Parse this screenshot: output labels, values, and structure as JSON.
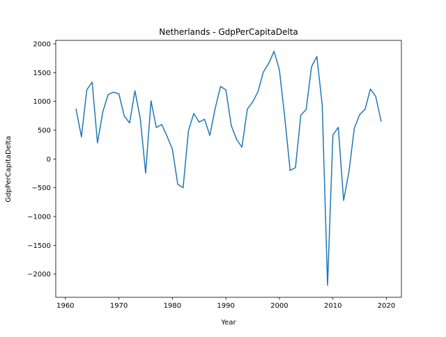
{
  "chart_data": {
    "type": "line",
    "title": "Netherlands - GdpPerCapitaDelta",
    "xlabel": "Year",
    "ylabel": "GdpPerCapitaDelta",
    "xlim": [
      1958.2,
      2022.8
    ],
    "ylim": [
      -2403,
      2060
    ],
    "xticks": [
      1960,
      1970,
      1980,
      1990,
      2000,
      2010,
      2020
    ],
    "yticks": [
      -2000,
      -1500,
      -1000,
      -500,
      0,
      500,
      1000,
      1500,
      2000
    ],
    "xtick_labels": [
      "1960",
      "1970",
      "1980",
      "1990",
      "2000",
      "2010",
      "2020"
    ],
    "ytick_labels": [
      "−2000",
      "−1500",
      "−1000",
      "−500",
      "0",
      "500",
      "1000",
      "1500",
      "2000"
    ],
    "grid": false,
    "legend": "none",
    "line_color": "#1f77b4",
    "series": [
      {
        "x": [
          1962,
          1963,
          1964,
          1965,
          1966,
          1967,
          1968,
          1969,
          1970,
          1971,
          1972,
          1973,
          1974,
          1975,
          1976,
          1977,
          1978,
          1979,
          1980,
          1981,
          1982,
          1983,
          1984,
          1985,
          1986,
          1987,
          1988,
          1989,
          1990,
          1991,
          1992,
          1993,
          1994,
          1995,
          1996,
          1997,
          1998,
          1999,
          2000,
          2001,
          2002,
          2003,
          2004,
          2005,
          2006,
          2007,
          2008,
          2009,
          2010,
          2011,
          2012,
          2013,
          2014,
          2015,
          2016,
          2017,
          2018,
          2019
        ],
        "values": [
          865,
          385,
          1200,
          1335,
          280,
          820,
          1120,
          1160,
          1130,
          750,
          625,
          1185,
          700,
          -245,
          1010,
          545,
          600,
          395,
          170,
          -440,
          -500,
          490,
          790,
          640,
          690,
          410,
          880,
          1260,
          1200,
          580,
          340,
          205,
          865,
          990,
          1170,
          1510,
          1660,
          1870,
          1545,
          725,
          -200,
          -150,
          760,
          860,
          1600,
          1780,
          940,
          -2195,
          415,
          550,
          -720,
          -220,
          535,
          770,
          860,
          1215,
          1085,
          660
        ]
      }
    ]
  }
}
